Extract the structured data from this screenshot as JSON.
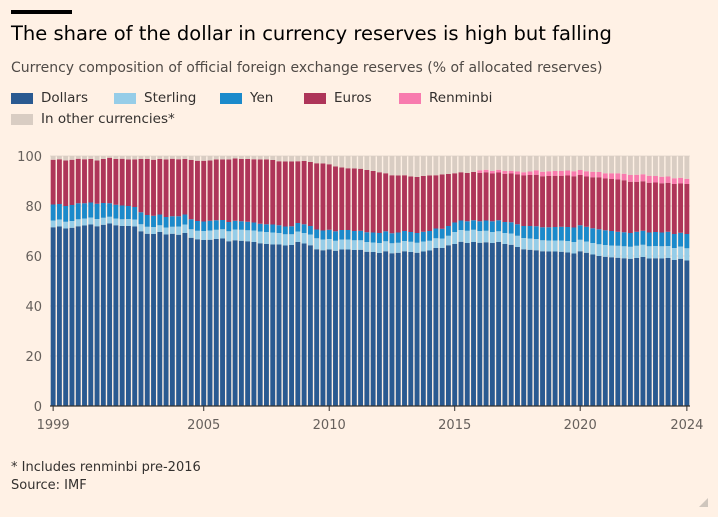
{
  "title": "The share of the dollar in currency reserves is high but falling",
  "subtitle": "Currency composition of official foreign exchange reserves (% of allocated reserves)",
  "footnote": "* Includes renminbi pre-2016",
  "source": "Source: IMF",
  "colors": {
    "Dollars": "#2A5A91",
    "Sterling": "#96CDE8",
    "Yen": "#1B8ACB",
    "Euros": "#AE3559",
    "Renminbi": "#F87BAE",
    "In other currencies*": "#D9CDC3"
  },
  "chart_data": {
    "type": "bar",
    "stacked": true,
    "title": "The share of the dollar in currency reserves is high but falling",
    "subtitle": "Currency composition of official foreign exchange reserves (% of allocated reserves)",
    "ylim": [
      0,
      100
    ],
    "yticks": [
      0,
      20,
      40,
      60,
      80,
      100
    ],
    "xticks": [
      "1999",
      "2005",
      "2010",
      "2015",
      "2020",
      "2024"
    ],
    "grid": true,
    "legend_position": "top-left",
    "categories": [
      "1999 Q1",
      "1999 Q2",
      "1999 Q3",
      "1999 Q4",
      "2000 Q1",
      "2000 Q2",
      "2000 Q3",
      "2000 Q4",
      "2001 Q1",
      "2001 Q2",
      "2001 Q3",
      "2001 Q4",
      "2002 Q1",
      "2002 Q2",
      "2002 Q3",
      "2002 Q4",
      "2003 Q1",
      "2003 Q2",
      "2003 Q3",
      "2003 Q4",
      "2004 Q1",
      "2004 Q2",
      "2004 Q3",
      "2004 Q4",
      "2005 Q1",
      "2005 Q2",
      "2005 Q3",
      "2005 Q4",
      "2006 Q1",
      "2006 Q2",
      "2006 Q3",
      "2006 Q4",
      "2007 Q1",
      "2007 Q2",
      "2007 Q3",
      "2007 Q4",
      "2008 Q1",
      "2008 Q2",
      "2008 Q3",
      "2008 Q4",
      "2009 Q1",
      "2009 Q2",
      "2009 Q3",
      "2009 Q4",
      "2010 Q1",
      "2010 Q2",
      "2010 Q3",
      "2010 Q4",
      "2011 Q1",
      "2011 Q2",
      "2011 Q3",
      "2011 Q4",
      "2012 Q1",
      "2012 Q2",
      "2012 Q3",
      "2012 Q4",
      "2013 Q1",
      "2013 Q2",
      "2013 Q3",
      "2013 Q4",
      "2014 Q1",
      "2014 Q2",
      "2014 Q3",
      "2014 Q4",
      "2015 Q1",
      "2015 Q2",
      "2015 Q3",
      "2015 Q4",
      "2016 Q1",
      "2016 Q2",
      "2016 Q3",
      "2016 Q4",
      "2017 Q1",
      "2017 Q2",
      "2017 Q3",
      "2017 Q4",
      "2018 Q1",
      "2018 Q2",
      "2018 Q3",
      "2018 Q4",
      "2019 Q1",
      "2019 Q2",
      "2019 Q3",
      "2019 Q4",
      "2020 Q1",
      "2020 Q2",
      "2020 Q3",
      "2020 Q4",
      "2021 Q1",
      "2021 Q2",
      "2021 Q3",
      "2021 Q4",
      "2022 Q1",
      "2022 Q2",
      "2022 Q3",
      "2022 Q4",
      "2023 Q1",
      "2023 Q2",
      "2023 Q3",
      "2023 Q4",
      "2024 Q1",
      "2024 Q2"
    ],
    "series": [
      {
        "name": "Dollars",
        "values": [
          71.5,
          71.8,
          71.0,
          71.3,
          71.9,
          72.2,
          72.6,
          71.9,
          72.5,
          73.0,
          72.3,
          72.0,
          72.0,
          71.8,
          69.9,
          68.9,
          68.8,
          69.6,
          68.6,
          68.9,
          68.5,
          69.2,
          67.3,
          66.7,
          66.4,
          66.5,
          66.8,
          67.0,
          65.9,
          66.3,
          66.1,
          65.9,
          65.6,
          65.1,
          64.8,
          64.6,
          64.6,
          64.2,
          64.4,
          65.6,
          65.0,
          64.3,
          62.7,
          62.3,
          62.6,
          62.1,
          62.6,
          62.6,
          62.4,
          62.5,
          61.7,
          61.6,
          61.2,
          61.9,
          61.1,
          61.3,
          61.9,
          61.6,
          61.3,
          61.8,
          62.2,
          63.2,
          63.2,
          64.3,
          64.8,
          65.7,
          65.2,
          65.6,
          65.3,
          65.5,
          65.2,
          65.6,
          64.8,
          64.5,
          63.6,
          62.7,
          62.5,
          62.3,
          61.9,
          61.8,
          61.8,
          61.7,
          61.4,
          61.0,
          61.9,
          61.3,
          60.6,
          60.0,
          59.7,
          59.5,
          59.3,
          59.1,
          58.9,
          59.2,
          59.6,
          59.0,
          59.1,
          59.0,
          59.2,
          58.4,
          58.9,
          58.2
        ]
      },
      {
        "name": "Sterling",
        "values": [
          2.7,
          2.8,
          2.7,
          2.7,
          2.8,
          2.8,
          2.8,
          2.9,
          2.8,
          2.7,
          2.7,
          2.7,
          2.8,
          2.8,
          2.8,
          2.8,
          2.8,
          2.7,
          2.8,
          2.8,
          3.3,
          3.4,
          3.4,
          3.4,
          3.6,
          3.7,
          3.7,
          3.7,
          4.0,
          4.3,
          4.4,
          4.4,
          4.6,
          4.7,
          4.8,
          4.8,
          4.6,
          4.5,
          4.3,
          4.2,
          4.2,
          4.3,
          4.4,
          4.3,
          4.2,
          4.0,
          4.0,
          4.0,
          3.9,
          3.8,
          3.9,
          3.8,
          4.0,
          4.0,
          4.0,
          4.0,
          4.1,
          4.1,
          4.0,
          4.0,
          3.9,
          3.9,
          3.8,
          3.8,
          4.8,
          4.7,
          4.9,
          4.9,
          4.7,
          4.6,
          4.4,
          4.3,
          4.4,
          4.5,
          4.5,
          4.5,
          4.5,
          4.5,
          4.4,
          4.4,
          4.4,
          4.5,
          4.6,
          4.6,
          4.6,
          4.5,
          4.6,
          4.7,
          4.7,
          4.7,
          4.8,
          4.8,
          4.8,
          4.9,
          4.9,
          4.9,
          4.9,
          4.9,
          4.8,
          4.8,
          4.9,
          4.9
        ]
      },
      {
        "name": "Yen",
        "values": [
          6.4,
          6.2,
          6.3,
          6.4,
          6.4,
          6.1,
          6.0,
          6.1,
          5.9,
          5.4,
          5.5,
          5.5,
          5.2,
          5.0,
          4.8,
          4.7,
          4.5,
          4.3,
          4.2,
          4.2,
          4.1,
          4.0,
          4.0,
          3.9,
          3.8,
          3.9,
          3.8,
          3.7,
          3.7,
          3.5,
          3.4,
          3.4,
          3.2,
          3.1,
          3.1,
          3.2,
          3.1,
          3.1,
          3.2,
          3.4,
          3.5,
          3.4,
          3.5,
          3.6,
          3.7,
          3.8,
          3.8,
          3.8,
          3.7,
          3.8,
          3.9,
          4.0,
          4.0,
          4.0,
          4.0,
          4.1,
          4.0,
          3.9,
          3.9,
          3.9,
          3.9,
          3.9,
          3.9,
          3.9,
          3.8,
          3.8,
          3.8,
          3.8,
          3.9,
          4.1,
          4.3,
          4.4,
          4.4,
          4.5,
          4.6,
          4.8,
          5.0,
          5.1,
          5.2,
          5.3,
          5.4,
          5.5,
          5.6,
          5.8,
          5.8,
          5.9,
          5.9,
          6.0,
          5.9,
          5.8,
          5.6,
          5.6,
          5.5,
          5.6,
          5.6,
          5.5,
          5.6,
          5.5,
          5.7,
          5.6,
          5.5,
          5.7
        ]
      },
      {
        "name": "Euros",
        "values": [
          17.9,
          17.9,
          18.2,
          18.1,
          17.8,
          17.6,
          17.4,
          17.3,
          17.6,
          18.2,
          18.3,
          18.7,
          18.6,
          19.0,
          21.3,
          22.4,
          22.4,
          22.2,
          23.0,
          23.0,
          22.8,
          22.2,
          23.7,
          24.1,
          24.3,
          24.1,
          24.3,
          24.2,
          25.0,
          24.9,
          24.9,
          25.1,
          25.3,
          25.7,
          25.9,
          25.8,
          25.6,
          26.0,
          25.9,
          24.7,
          25.3,
          25.6,
          26.5,
          26.8,
          26.2,
          25.9,
          25.0,
          24.7,
          25.0,
          24.8,
          24.9,
          24.6,
          24.3,
          23.2,
          23.2,
          22.8,
          22.3,
          22.2,
          22.4,
          22.3,
          22.2,
          21.3,
          21.7,
          20.8,
          19.7,
          19.3,
          19.3,
          19.3,
          19.3,
          19.3,
          19.1,
          19.1,
          19.3,
          19.5,
          20.0,
          20.3,
          20.4,
          20.6,
          20.4,
          20.5,
          20.5,
          20.4,
          20.6,
          20.5,
          20.1,
          20.1,
          20.4,
          20.8,
          20.7,
          20.8,
          20.9,
          20.8,
          20.5,
          20.0,
          19.8,
          19.9,
          19.8,
          19.7,
          19.6,
          20.0,
          19.7,
          20.0
        ]
      },
      {
        "name": "Renminbi",
        "values": [
          0,
          0,
          0,
          0,
          0,
          0,
          0,
          0,
          0,
          0,
          0,
          0,
          0,
          0,
          0,
          0,
          0,
          0,
          0,
          0,
          0,
          0,
          0,
          0,
          0,
          0,
          0,
          0,
          0,
          0,
          0,
          0,
          0,
          0,
          0,
          0,
          0,
          0,
          0,
          0,
          0,
          0,
          0,
          0,
          0,
          0,
          0,
          0,
          0,
          0,
          0,
          0,
          0,
          0,
          0,
          0,
          0,
          0,
          0,
          0,
          0,
          0,
          0,
          0,
          0,
          0,
          0,
          0,
          1.1,
          1.0,
          1.0,
          1.1,
          1.1,
          1.1,
          1.1,
          1.2,
          1.4,
          1.8,
          1.8,
          1.9,
          1.9,
          2.0,
          2.0,
          2.0,
          2.0,
          2.1,
          2.2,
          2.1,
          2.1,
          2.3,
          2.5,
          2.6,
          2.7,
          2.8,
          2.8,
          2.8,
          2.6,
          2.6,
          2.5,
          2.3,
          2.3,
          2.1
        ]
      },
      {
        "name": "In other currencies*",
        "values": [
          1.5,
          1.3,
          1.8,
          1.5,
          1.1,
          1.3,
          1.2,
          1.8,
          1.2,
          0.7,
          1.2,
          1.1,
          1.4,
          1.4,
          1.2,
          1.2,
          1.5,
          1.2,
          1.4,
          1.1,
          1.3,
          1.2,
          1.6,
          1.9,
          1.9,
          1.8,
          1.4,
          1.4,
          1.4,
          1.0,
          1.2,
          1.2,
          1.3,
          1.4,
          1.4,
          1.6,
          2.1,
          2.2,
          2.2,
          2.1,
          2.0,
          2.4,
          2.9,
          3.0,
          3.3,
          4.2,
          4.6,
          4.9,
          5.0,
          5.1,
          5.6,
          6.0,
          6.5,
          6.9,
          7.7,
          7.8,
          7.7,
          8.2,
          8.4,
          8.0,
          7.8,
          7.7,
          7.4,
          7.2,
          6.9,
          6.5,
          6.8,
          6.4,
          5.7,
          5.5,
          6.0,
          5.5,
          6.0,
          5.9,
          6.2,
          6.5,
          6.2,
          5.7,
          6.2,
          6.0,
          5.9,
          5.9,
          5.8,
          6.1,
          5.6,
          6.1,
          6.3,
          6.4,
          6.9,
          6.9,
          7.0,
          7.1,
          7.6,
          7.5,
          7.3,
          7.9,
          8.0,
          8.3,
          8.2,
          8.9,
          8.7,
          9.1
        ]
      }
    ]
  }
}
